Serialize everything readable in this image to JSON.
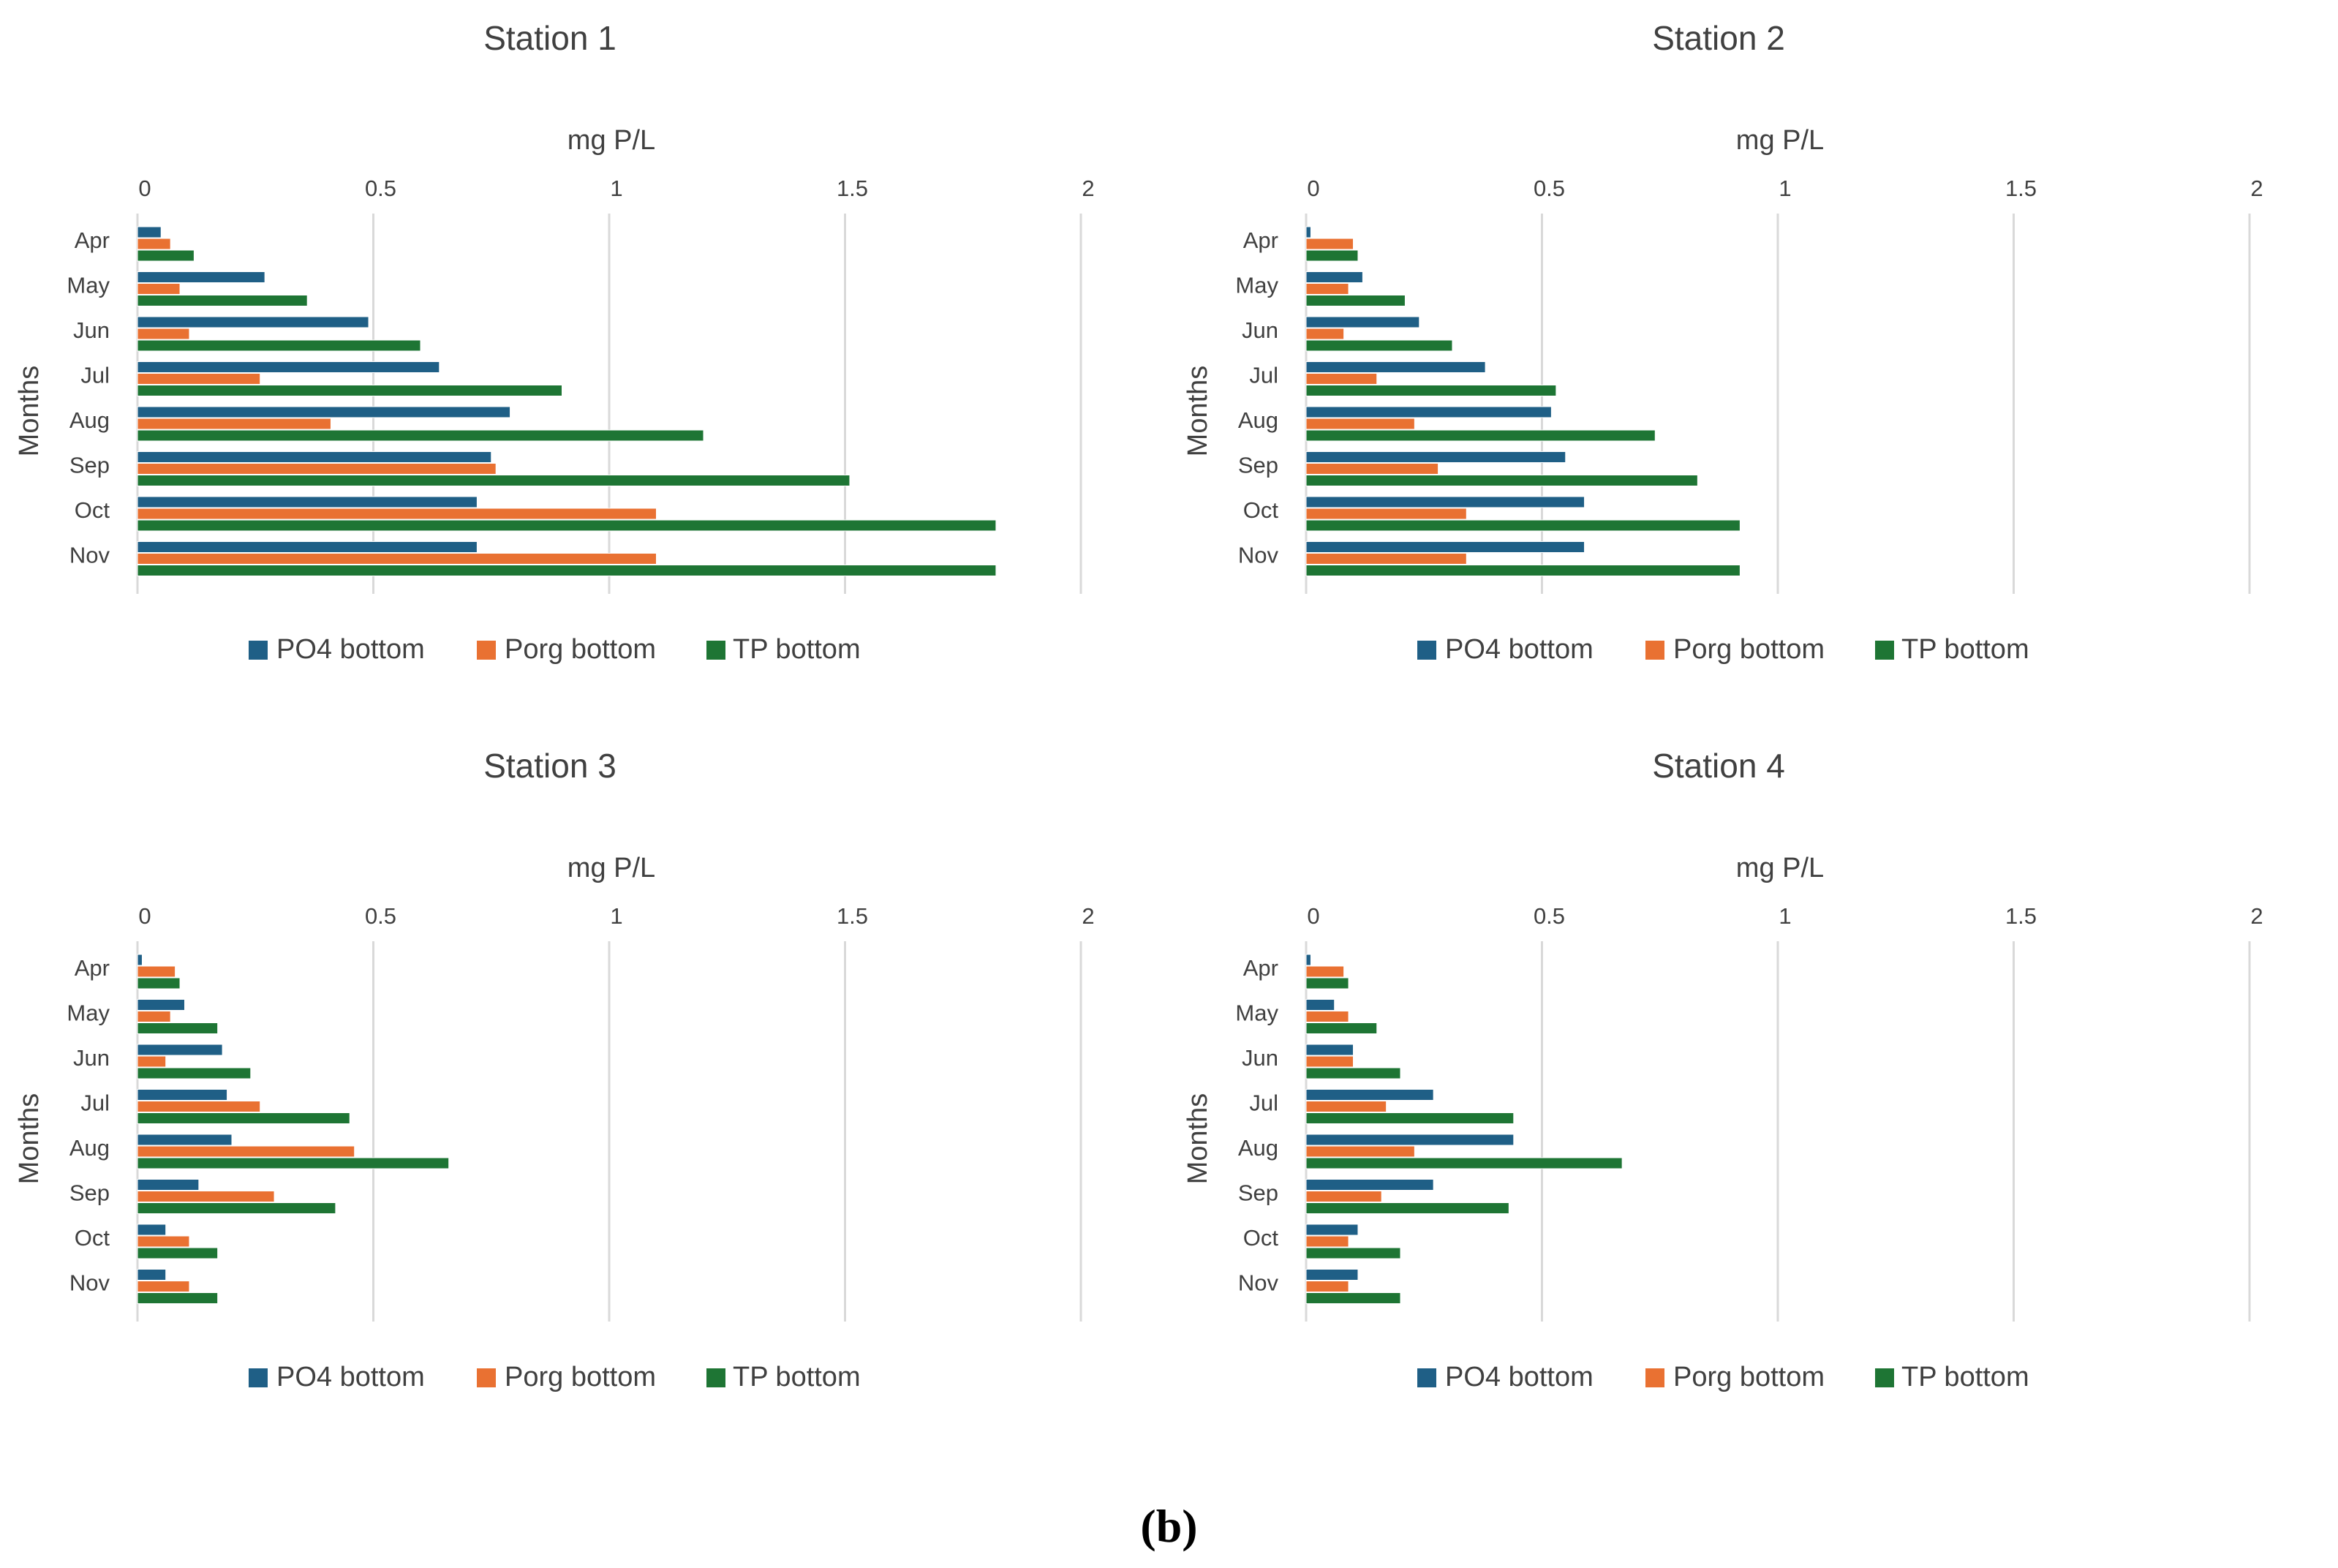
{
  "caption": "(b)",
  "colors": {
    "po4": "#1f5f86",
    "porg": "#e97132",
    "tp": "#1e7534",
    "grid": "#d9d9d9",
    "text": "#404040",
    "title": "#404040"
  },
  "chart_data": [
    {
      "type": "bar",
      "orientation": "horizontal",
      "title": "Station 1",
      "xlabel": "mg P/L",
      "ylabel": "Months",
      "xlim": [
        0,
        2
      ],
      "xticks": [
        "0",
        "0.5",
        "1",
        "1.5",
        "2"
      ],
      "categories": [
        "Apr",
        "May",
        "Jun",
        "Jul",
        "Aug",
        "Sep",
        "Oct",
        "Nov"
      ],
      "series": [
        {
          "name": "PO4 bottom",
          "values": [
            0.05,
            0.27,
            0.49,
            0.64,
            0.79,
            0.75,
            0.72,
            0.72
          ]
        },
        {
          "name": "Porg bottom",
          "values": [
            0.07,
            0.09,
            0.11,
            0.26,
            0.41,
            0.76,
            1.1,
            1.1
          ]
        },
        {
          "name": "TP bottom",
          "values": [
            0.12,
            0.36,
            0.6,
            0.9,
            1.2,
            1.51,
            1.82,
            1.82
          ]
        }
      ],
      "legend_position": "bottom"
    },
    {
      "type": "bar",
      "orientation": "horizontal",
      "title": "Station 2",
      "xlabel": "mg P/L",
      "ylabel": "Months",
      "xlim": [
        0,
        2
      ],
      "xticks": [
        "0",
        "0.5",
        "1",
        "1.5",
        "2"
      ],
      "categories": [
        "Apr",
        "May",
        "Jun",
        "Jul",
        "Aug",
        "Sep",
        "Oct",
        "Nov"
      ],
      "series": [
        {
          "name": "PO4 bottom",
          "values": [
            0.01,
            0.12,
            0.24,
            0.38,
            0.52,
            0.55,
            0.59,
            0.59
          ]
        },
        {
          "name": "Porg bottom",
          "values": [
            0.1,
            0.09,
            0.08,
            0.15,
            0.23,
            0.28,
            0.34,
            0.34
          ]
        },
        {
          "name": "TP bottom",
          "values": [
            0.11,
            0.21,
            0.31,
            0.53,
            0.74,
            0.83,
            0.92,
            0.92
          ]
        }
      ],
      "legend_position": "bottom"
    },
    {
      "type": "bar",
      "orientation": "horizontal",
      "title": "Station 3",
      "xlabel": "mg P/L",
      "ylabel": "Months",
      "xlim": [
        0,
        2
      ],
      "xticks": [
        "0",
        "0.5",
        "1",
        "1.5",
        "2"
      ],
      "categories": [
        "Apr",
        "May",
        "Jun",
        "Jul",
        "Aug",
        "Sep",
        "Oct",
        "Nov"
      ],
      "series": [
        {
          "name": "PO4 bottom",
          "values": [
            0.01,
            0.1,
            0.18,
            0.19,
            0.2,
            0.13,
            0.06,
            0.06
          ]
        },
        {
          "name": "Porg bottom",
          "values": [
            0.08,
            0.07,
            0.06,
            0.26,
            0.46,
            0.29,
            0.11,
            0.11
          ]
        },
        {
          "name": "TP bottom",
          "values": [
            0.09,
            0.17,
            0.24,
            0.45,
            0.66,
            0.42,
            0.17,
            0.17
          ]
        }
      ],
      "legend_position": "bottom"
    },
    {
      "type": "bar",
      "orientation": "horizontal",
      "title": "Station 4",
      "xlabel": "mg P/L",
      "ylabel": "Months",
      "xlim": [
        0,
        2
      ],
      "xticks": [
        "0",
        "0.5",
        "1",
        "1.5",
        "2"
      ],
      "categories": [
        "Apr",
        "May",
        "Jun",
        "Jul",
        "Aug",
        "Sep",
        "Oct",
        "Nov"
      ],
      "series": [
        {
          "name": "PO4 bottom",
          "values": [
            0.01,
            0.06,
            0.1,
            0.27,
            0.44,
            0.27,
            0.11,
            0.11
          ]
        },
        {
          "name": "Porg bottom",
          "values": [
            0.08,
            0.09,
            0.1,
            0.17,
            0.23,
            0.16,
            0.09,
            0.09
          ]
        },
        {
          "name": "TP bottom",
          "values": [
            0.09,
            0.15,
            0.2,
            0.44,
            0.67,
            0.43,
            0.2,
            0.2
          ]
        }
      ],
      "legend_position": "bottom"
    }
  ]
}
